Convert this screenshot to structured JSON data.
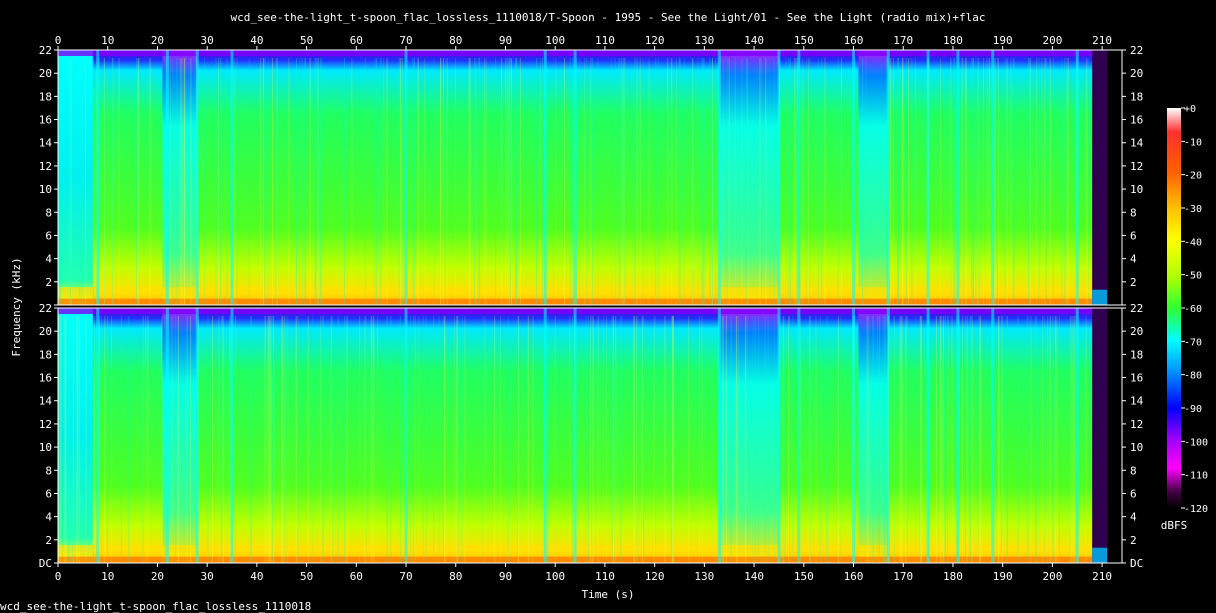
{
  "chart_data": {
    "type": "heatmap",
    "title": "wcd_see-the-light_t-spoon_flac_lossless_1110018/T-Spoon - 1995 - See the Light/01 - See the Light (radio mix)+flac",
    "xlabel": "Time (s)",
    "ylabel": "Frequency (kHz)",
    "xlim": [
      0,
      214
    ],
    "x_ticks": [
      0,
      10,
      20,
      30,
      40,
      50,
      60,
      70,
      80,
      90,
      100,
      110,
      120,
      130,
      140,
      150,
      160,
      170,
      180,
      190,
      200,
      210
    ],
    "ylim": [
      0,
      22
    ],
    "y_ticks": [
      "DC",
      "2",
      "4",
      "6",
      "8",
      "10",
      "12",
      "14",
      "16",
      "18",
      "20",
      "22"
    ],
    "channels": 2,
    "colorbar": {
      "label": "dBFS",
      "range": [
        -120,
        0
      ],
      "ticks": [
        "+0",
        "-10",
        "-20",
        "-30",
        "-40",
        "-50",
        "-60",
        "-70",
        "-80",
        "-90",
        "-100",
        "-110",
        "-120"
      ],
      "colors": [
        "#ffffff",
        "#ff3030",
        "#ff6000",
        "#ffc000",
        "#ffff00",
        "#b0ff00",
        "#30ff30",
        "#00ffff",
        "#0090ff",
        "#0000ff",
        "#a000ff",
        "#ff00ff",
        "#400040",
        "#000000"
      ]
    },
    "quiet_segments_s": [
      [
        21,
        28
      ],
      [
        133,
        145
      ],
      [
        161,
        167
      ]
    ],
    "section_breaks_s": [
      8,
      22,
      28,
      35,
      70,
      98,
      104,
      133,
      145,
      149,
      160,
      167,
      175,
      181,
      188,
      205
    ],
    "end_fade_s": 208,
    "end_s": 211
  },
  "footer": "wcd_see-the-light_t-spoon_flac_lossless_1110018"
}
